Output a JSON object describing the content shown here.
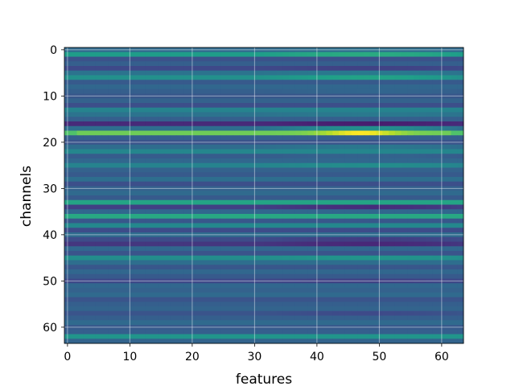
{
  "chart_data": {
    "type": "heatmap",
    "title": "",
    "xlabel": "features",
    "ylabel": "channels",
    "n_features": 64,
    "n_channels": 64,
    "xlim": [
      -0.5,
      63.5
    ],
    "ylim": [
      63.5,
      -0.5
    ],
    "y_inverted": true,
    "xticks": [
      0,
      10,
      20,
      30,
      40,
      50,
      60
    ],
    "yticks": [
      0,
      10,
      20,
      30,
      40,
      50,
      60
    ],
    "grid": true,
    "colormap": "viridis",
    "value_range": [
      0,
      1
    ],
    "row_base": [
      0.34,
      0.55,
      0.25,
      0.3,
      0.22,
      0.38,
      0.5,
      0.28,
      0.33,
      0.3,
      0.27,
      0.31,
      0.24,
      0.45,
      0.38,
      0.3,
      0.12,
      0.36,
      0.78,
      0.3,
      0.26,
      0.35,
      0.46,
      0.29,
      0.33,
      0.45,
      0.31,
      0.28,
      0.36,
      0.24,
      0.31,
      0.34,
      0.28,
      0.58,
      0.19,
      0.33,
      0.6,
      0.27,
      0.47,
      0.23,
      0.35,
      0.23,
      0.16,
      0.33,
      0.26,
      0.49,
      0.36,
      0.27,
      0.33,
      0.28,
      0.22,
      0.33,
      0.31,
      0.34,
      0.26,
      0.3,
      0.32,
      0.26,
      0.3,
      0.34,
      0.28,
      0.3,
      0.52,
      0.32
    ],
    "row_trend": [
      0.05,
      0.1,
      0.0,
      0.0,
      -0.04,
      0.04,
      0.12,
      0.0,
      0.0,
      0.04,
      0.0,
      0.0,
      0.0,
      0.0,
      0.04,
      0.0,
      -0.06,
      0.22,
      0.0,
      0.0,
      0.0,
      0.08,
      0.0,
      0.04,
      0.0,
      0.06,
      0.0,
      0.0,
      0.0,
      0.0,
      0.0,
      0.0,
      0.0,
      0.0,
      -0.1,
      0.0,
      0.0,
      0.0,
      0.0,
      0.0,
      0.0,
      -0.08,
      -0.08,
      0.0,
      0.0,
      0.04,
      0.0,
      0.0,
      0.0,
      0.0,
      -0.04,
      0.0,
      0.0,
      0.0,
      0.0,
      0.0,
      0.0,
      -0.06,
      0.0,
      0.0,
      0.0,
      0.0,
      0.0,
      0.0
    ]
  }
}
